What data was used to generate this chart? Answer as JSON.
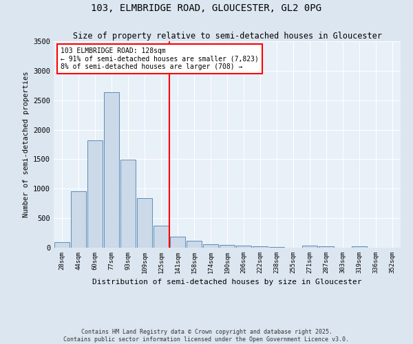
{
  "title": "103, ELMBRIDGE ROAD, GLOUCESTER, GL2 0PG",
  "subtitle": "Size of property relative to semi-detached houses in Gloucester",
  "xlabel": "Distribution of semi-detached houses by size in Gloucester",
  "ylabel": "Number of semi-detached properties",
  "bar_labels": [
    "28sqm",
    "44sqm",
    "60sqm",
    "77sqm",
    "93sqm",
    "109sqm",
    "125sqm",
    "141sqm",
    "158sqm",
    "174sqm",
    "190sqm",
    "206sqm",
    "222sqm",
    "238sqm",
    "255sqm",
    "271sqm",
    "287sqm",
    "303sqm",
    "319sqm",
    "336sqm",
    "352sqm"
  ],
  "bar_values": [
    95,
    960,
    1820,
    2640,
    1490,
    840,
    370,
    190,
    120,
    55,
    45,
    30,
    20,
    10,
    5,
    30,
    25,
    5,
    25,
    0,
    0
  ],
  "bar_color": "#ccd9e8",
  "bar_edge_color": "#5b8db8",
  "ylim": [
    0,
    3500
  ],
  "yticks": [
    0,
    500,
    1000,
    1500,
    2000,
    2500,
    3000,
    3500
  ],
  "property_line_x": 6.5,
  "property_line_color": "red",
  "annotation_text": "103 ELMBRIDGE ROAD: 128sqm\n← 91% of semi-detached houses are smaller (7,823)\n8% of semi-detached houses are larger (708) →",
  "annotation_box_color": "white",
  "annotation_box_edge": "red",
  "footer": "Contains HM Land Registry data © Crown copyright and database right 2025.\nContains public sector information licensed under the Open Government Licence v3.0.",
  "bg_color": "#dce6f0",
  "plot_bg_color": "#e8f0f8"
}
